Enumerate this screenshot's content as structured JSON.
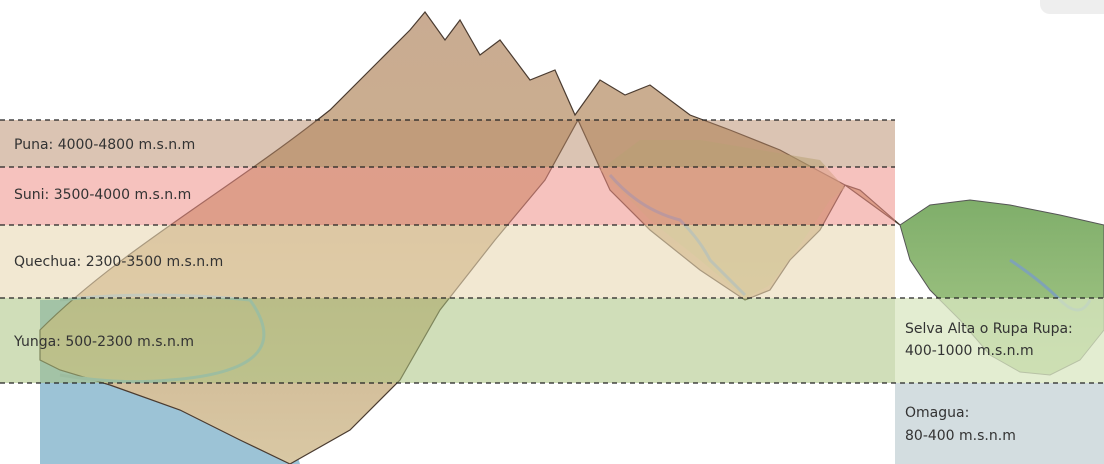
{
  "zones": [
    {
      "label": "Puna: 4000-4800 m.s.n.m"
    },
    {
      "label": "Suni: 3500-4000 m.s.n.m"
    },
    {
      "label": "Quechua: 2300-3500 m.s.n.m"
    },
    {
      "label": "Yunga: 500-2300 m.s.n.m"
    }
  ],
  "side_zones": [
    {
      "lines": [
        "Selva Alta o Rupa Rupa:",
        "400-1000 m.s.n.m"
      ]
    },
    {
      "lines": [
        "Omagua:",
        "80-400 m.s.n.m"
      ]
    }
  ]
}
